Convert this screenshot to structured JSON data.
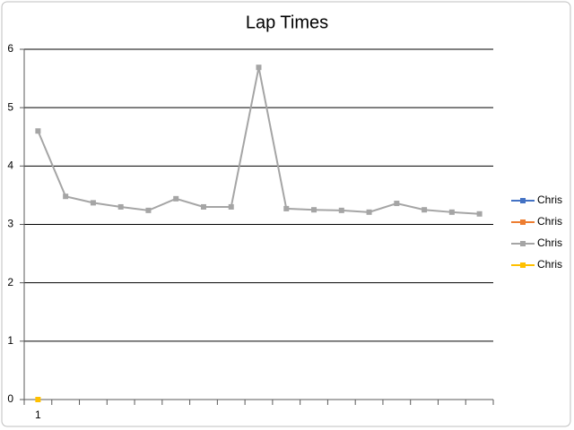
{
  "chart_data": {
    "type": "line",
    "title": "Lap Times",
    "categories": [
      "1",
      null,
      null,
      null,
      null,
      null,
      null,
      null,
      null,
      null,
      null,
      null,
      null,
      null,
      null,
      null,
      null
    ],
    "series": [
      {
        "name": "Chris",
        "color": "#4472c4",
        "values": [
          null,
          null,
          null,
          null,
          null,
          null,
          null,
          null,
          null,
          null,
          null,
          null,
          null,
          null,
          null,
          null,
          null
        ]
      },
      {
        "name": "Chris",
        "color": "#ed7d31",
        "values": [
          null,
          null,
          null,
          null,
          null,
          null,
          null,
          null,
          null,
          null,
          null,
          null,
          null,
          null,
          null,
          null,
          null
        ]
      },
      {
        "name": "Chris",
        "color": "#a5a5a5",
        "values": [
          4.6,
          3.48,
          3.37,
          3.3,
          3.24,
          3.44,
          3.3,
          3.3,
          5.69,
          3.27,
          3.25,
          3.24,
          3.21,
          3.36,
          3.25,
          3.21,
          3.18
        ]
      },
      {
        "name": "Chris",
        "color": "#ffc000",
        "values": [
          0,
          null,
          null,
          null,
          null,
          null,
          null,
          null,
          null,
          null,
          null,
          null,
          null,
          null,
          null,
          null,
          null
        ]
      }
    ],
    "ylim": [
      0,
      6
    ],
    "yticks": [
      0,
      1,
      2,
      3,
      4,
      5,
      6
    ],
    "grid": true,
    "legend": "right"
  }
}
